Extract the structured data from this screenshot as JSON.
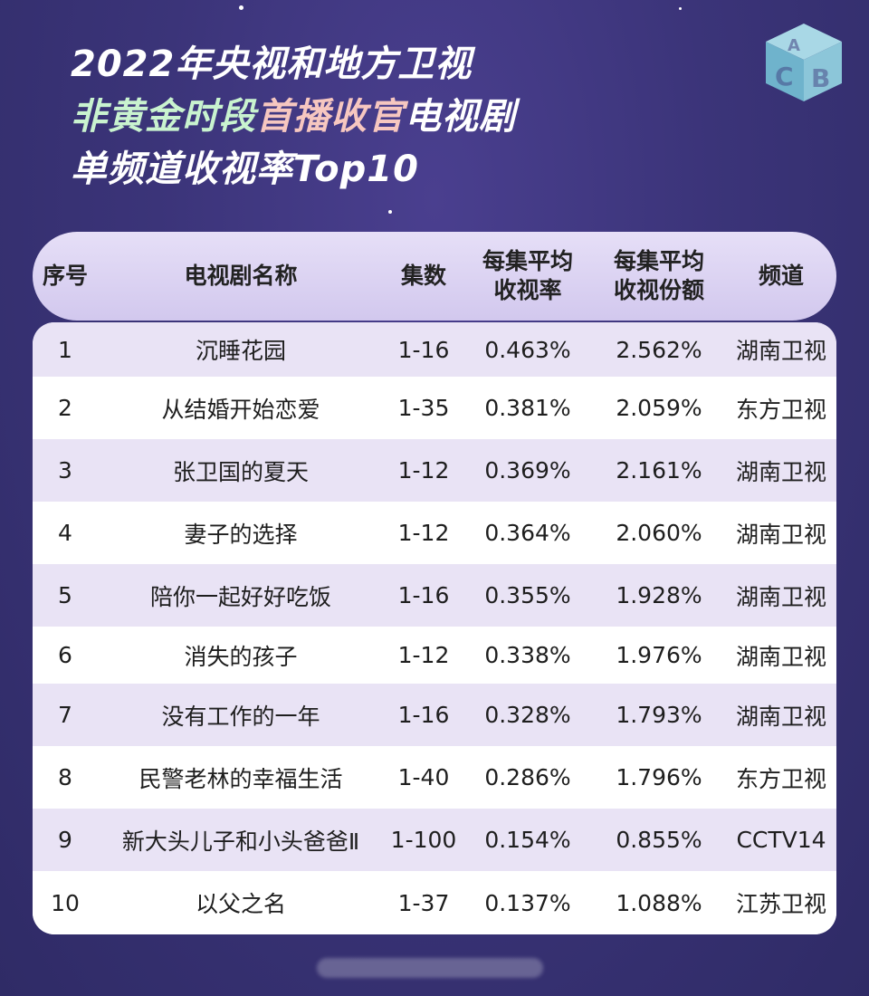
{
  "title": {
    "line1": "2022年央视和地方卫视",
    "line2_part1": "非黄金时段",
    "line2_part2": "首播收官",
    "line2_part3": "电视剧",
    "line3": "单频道收视率Top10"
  },
  "logo_icon": "abc-cube-logo",
  "table": {
    "headers": {
      "index": "序号",
      "name": "电视剧名称",
      "episodes": "集数",
      "rating": "每集平均\n收视率",
      "share": "每集平均\n收视份额",
      "channel": "频道"
    },
    "rows": [
      {
        "index": "1",
        "name": "沉睡花园",
        "episodes": "1-16",
        "rating": "0.463%",
        "share": "2.562%",
        "channel": "湖南卫视"
      },
      {
        "index": "2",
        "name": "从结婚开始恋爱",
        "episodes": "1-35",
        "rating": "0.381%",
        "share": "2.059%",
        "channel": "东方卫视"
      },
      {
        "index": "3",
        "name": "张卫国的夏天",
        "episodes": "1-12",
        "rating": "0.369%",
        "share": "2.161%",
        "channel": "湖南卫视"
      },
      {
        "index": "4",
        "name": "妻子的选择",
        "episodes": "1-12",
        "rating": "0.364%",
        "share": "2.060%",
        "channel": "湖南卫视"
      },
      {
        "index": "5",
        "name": "陪你一起好好吃饭",
        "episodes": "1-16",
        "rating": "0.355%",
        "share": "1.928%",
        "channel": "湖南卫视"
      },
      {
        "index": "6",
        "name": "消失的孩子",
        "episodes": "1-12",
        "rating": "0.338%",
        "share": "1.976%",
        "channel": "湖南卫视"
      },
      {
        "index": "7",
        "name": "没有工作的一年",
        "episodes": "1-16",
        "rating": "0.328%",
        "share": "1.793%",
        "channel": "湖南卫视"
      },
      {
        "index": "8",
        "name": "民警老林的幸福生活",
        "episodes": "1-40",
        "rating": "0.286%",
        "share": "1.796%",
        "channel": "东方卫视"
      },
      {
        "index": "9",
        "name": "新大头儿子和小头爸爸Ⅱ",
        "episodes": "1-100",
        "rating": "0.154%",
        "share": "0.855%",
        "channel": "CCTV14"
      },
      {
        "index": "10",
        "name": "以父之名",
        "episodes": "1-37",
        "rating": "0.137%",
        "share": "1.088%",
        "channel": "江苏卫视"
      }
    ]
  },
  "colors": {
    "background": "#3b3479",
    "header_bar": "#dcd4f2",
    "row_alt": "#e9e3f5",
    "title_green": "#c9f3cf",
    "title_pink": "#f6c7c0"
  }
}
